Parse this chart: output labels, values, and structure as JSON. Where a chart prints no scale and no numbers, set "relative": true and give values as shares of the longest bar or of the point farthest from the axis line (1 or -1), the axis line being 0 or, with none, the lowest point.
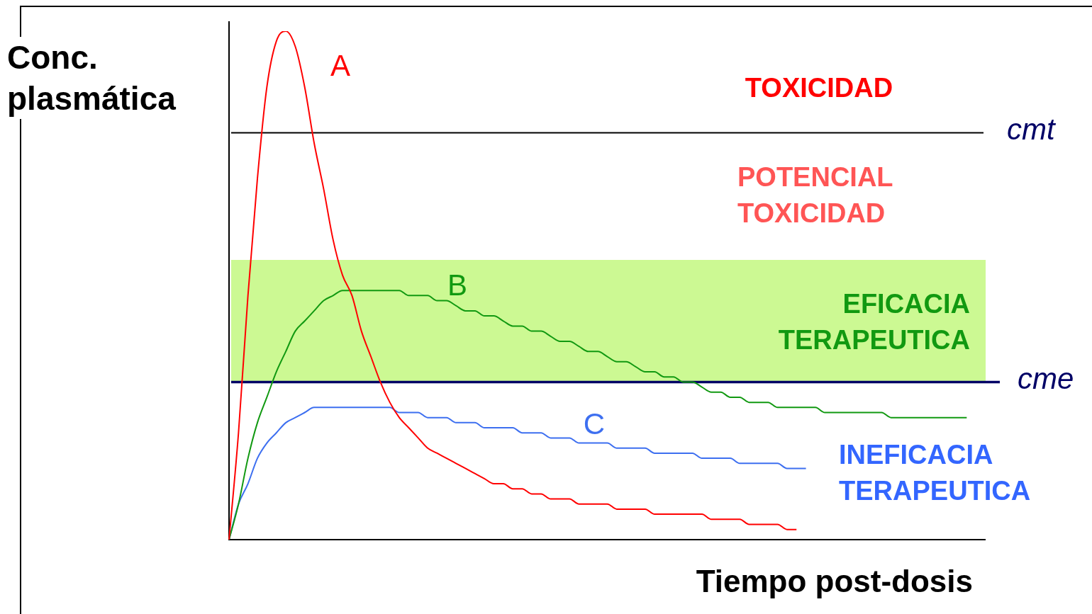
{
  "chart_data": {
    "type": "line",
    "relative": true,
    "xlabel": "Tiempo post-dosis",
    "ylabel": "Conc. plasmática",
    "categories": [
      null,
      null,
      null,
      null,
      null,
      null,
      null,
      null,
      null,
      null,
      null,
      null,
      null,
      null,
      null,
      null,
      null,
      null,
      null,
      null,
      null,
      null,
      null,
      null,
      null,
      null,
      null,
      null,
      null,
      null,
      null,
      null,
      null,
      null,
      null,
      null,
      null,
      null,
      null,
      null,
      null,
      null,
      null,
      null,
      null,
      null,
      null,
      null,
      null,
      null,
      null,
      null,
      null,
      null,
      null,
      null,
      null,
      null,
      null,
      null,
      null,
      null,
      null,
      null,
      null,
      null,
      null,
      null,
      null,
      null,
      null,
      null,
      null,
      null,
      null,
      null,
      null,
      null,
      null,
      null,
      null
    ],
    "series": [
      {
        "name": "A",
        "color": "#ff0000",
        "values": [
          0,
          0.21,
          0.48,
          0.71,
          0.89,
          0.98,
          1,
          0.97,
          0.89,
          0.78,
          0.69,
          0.59,
          0.52,
          0.48,
          0.41,
          0.36,
          0.31,
          0.27,
          0.24,
          0.22,
          0.2,
          0.18,
          0.17,
          0.16,
          0.15,
          0.14,
          0.13,
          0.12,
          0.11,
          0.11,
          0.1,
          0.1,
          0.09,
          0.09,
          0.08,
          0.08,
          0.08,
          0.07,
          0.07,
          0.07,
          0.07,
          0.06,
          0.06,
          0.06,
          0.06,
          0.05,
          0.05,
          0.05,
          0.05,
          0.05,
          0.05,
          0.04,
          0.04,
          0.04,
          0.04,
          0.03,
          0.03,
          0.03,
          0.03,
          0.02,
          0.02,
          null,
          null,
          null,
          null,
          null,
          null,
          null,
          null,
          null,
          null,
          null,
          null,
          null,
          null,
          null,
          null,
          null,
          null,
          null,
          null
        ]
      },
      {
        "name": "B",
        "color": "#119911",
        "values": [
          0,
          0.07,
          0.16,
          0.23,
          0.28,
          0.33,
          0.37,
          0.41,
          0.43,
          0.45,
          0.47,
          0.48,
          0.49,
          0.49,
          0.49,
          0.49,
          0.49,
          0.49,
          0.49,
          0.48,
          0.48,
          0.48,
          0.47,
          0.47,
          0.46,
          0.45,
          0.45,
          0.44,
          0.44,
          0.43,
          0.42,
          0.42,
          0.41,
          0.41,
          0.4,
          0.39,
          0.39,
          0.38,
          0.37,
          0.37,
          0.36,
          0.35,
          0.35,
          0.34,
          0.33,
          0.33,
          0.32,
          0.32,
          0.31,
          0.31,
          0.3,
          0.29,
          0.29,
          0.28,
          0.28,
          0.27,
          0.27,
          0.27,
          0.26,
          0.26,
          0.26,
          0.26,
          0.26,
          0.25,
          0.25,
          0.25,
          0.25,
          0.25,
          0.25,
          0.25,
          0.24,
          0.24,
          0.24,
          0.24,
          0.24,
          0.24,
          0.24,
          0.24,
          0.24,
          null,
          null
        ]
      },
      {
        "name": "C",
        "color": "#3d6ff0",
        "values": [
          0,
          0.07,
          0.11,
          0.16,
          0.19,
          0.21,
          0.23,
          0.24,
          0.25,
          0.26,
          0.26,
          0.26,
          0.26,
          0.26,
          0.26,
          0.26,
          0.26,
          0.26,
          0.25,
          0.25,
          0.25,
          0.24,
          0.24,
          0.24,
          0.23,
          0.23,
          0.23,
          0.22,
          0.22,
          0.22,
          0.22,
          0.21,
          0.21,
          0.21,
          0.2,
          0.2,
          0.2,
          0.19,
          0.19,
          0.19,
          0.19,
          0.18,
          0.18,
          0.18,
          0.18,
          0.17,
          0.17,
          0.17,
          0.17,
          0.17,
          0.16,
          0.16,
          0.16,
          0.16,
          0.15,
          0.15,
          0.15,
          0.15,
          0.15,
          0.14,
          0.14,
          0.14,
          null,
          null,
          null,
          null,
          null,
          null,
          null,
          null,
          null,
          null,
          null,
          null,
          null,
          null,
          null,
          null,
          null,
          null,
          null
        ]
      }
    ],
    "ref_lines": [
      {
        "axis": "y",
        "value": 0.8,
        "label": "cmt",
        "color": "#000000",
        "line_style": "solid"
      },
      {
        "axis": "y",
        "value": 0.31,
        "label": "cme",
        "color": "#000066",
        "line_style": "solid"
      }
    ],
    "bands": [
      {
        "axis": "y",
        "from": 0.31,
        "to": 0.55,
        "label": "EFICACIA TERAPEUTICA",
        "color": "#ccf993"
      }
    ],
    "annotations": [
      "TOXICIDAD",
      "POTENCIAL TOXICIDAD",
      "INEFICACIA TERAPEUTICA"
    ]
  }
}
